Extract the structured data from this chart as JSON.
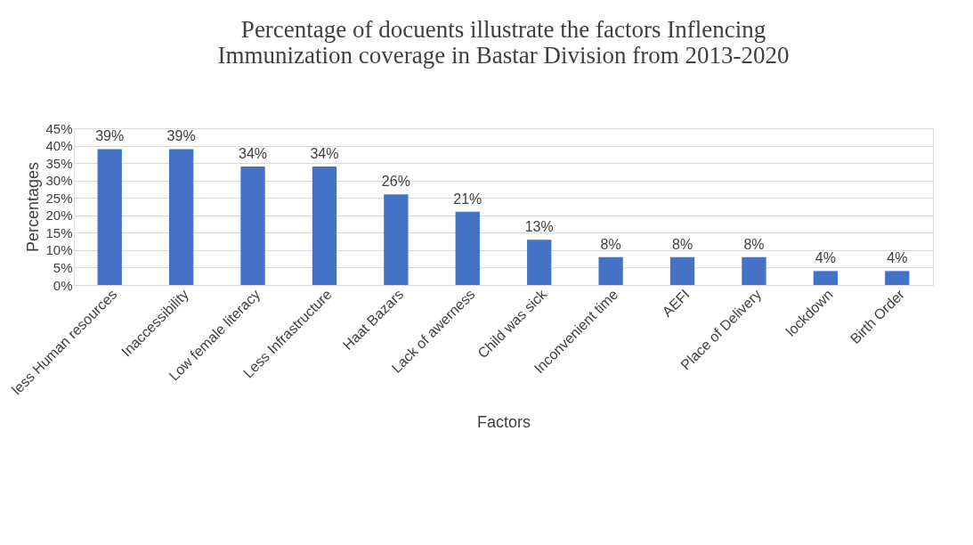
{
  "chart_data": {
    "type": "bar",
    "title": "Percentage of docuents illustrate the factors Inflencing Immunization coverage in Bastar Division from 2013-2020",
    "xlabel": "Factors",
    "ylabel": "Percentages",
    "categories": [
      "less Human resources",
      "Inaccessibility",
      "Low female literacy",
      "Less Infrastructure",
      "Haat Bazars",
      "Lack of awerness",
      "Child was sick",
      "Inconvenient time",
      "AEFI",
      "Place of Delivery",
      "lockdown",
      "Birth Order"
    ],
    "values": [
      39,
      39,
      34,
      34,
      26,
      21,
      13,
      8,
      8,
      8,
      4,
      4
    ],
    "value_labels": [
      "39%",
      "39%",
      "34%",
      "34%",
      "26%",
      "21%",
      "13%",
      "8%",
      "8%",
      "8%",
      "4%",
      "4%"
    ],
    "color": "#4472c4",
    "ylim": [
      0,
      45
    ],
    "yticks": [
      {
        "value": 0,
        "label": "0%"
      },
      {
        "value": 5,
        "label": "5%"
      },
      {
        "value": 10,
        "label": "10%"
      },
      {
        "value": 15,
        "label": "15%"
      },
      {
        "value": 20,
        "label": "20%"
      },
      {
        "value": 25,
        "label": "25%"
      },
      {
        "value": 30,
        "label": "30%"
      },
      {
        "value": 35,
        "label": "35%"
      },
      {
        "value": 40,
        "label": "40%"
      },
      {
        "value": 45,
        "label": "45%"
      }
    ],
    "grid": "y"
  }
}
